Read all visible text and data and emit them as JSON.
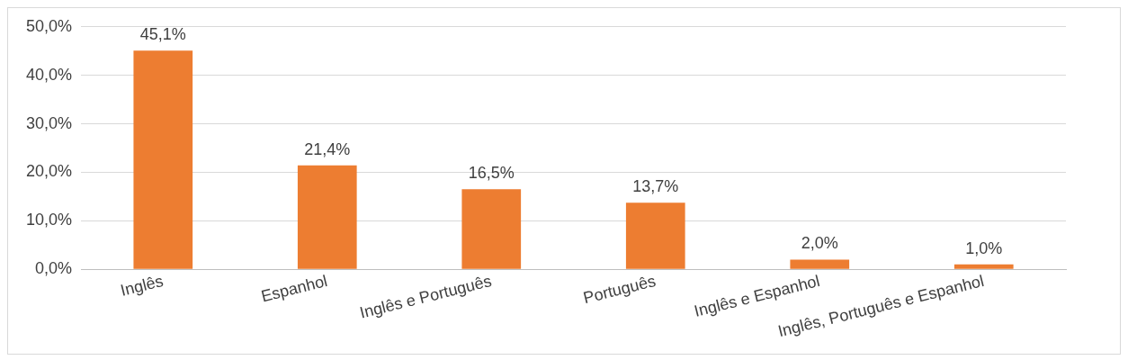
{
  "chart_data": {
    "type": "bar",
    "categories": [
      "Inglês",
      "Espanhol",
      "Inglês e Português",
      "Português",
      "Inglês e Espanhol",
      "Inglês, Português e Espanhol"
    ],
    "values": [
      45.1,
      21.4,
      16.5,
      13.7,
      2.0,
      1.0
    ],
    "value_labels": [
      "45,1%",
      "21,4%",
      "16,5%",
      "13,7%",
      "2,0%",
      "1,0%"
    ],
    "color": "#ed7d31",
    "ylim": [
      0,
      50
    ],
    "yticks": [
      {
        "value": 0,
        "label": "0,0%"
      },
      {
        "value": 10,
        "label": "10,0%"
      },
      {
        "value": 20,
        "label": "20,0%"
      },
      {
        "value": 30,
        "label": "30,0%"
      },
      {
        "value": 40,
        "label": "40,0%"
      },
      {
        "value": 50,
        "label": "50,0%"
      }
    ],
    "grid": "y",
    "legend": false
  }
}
